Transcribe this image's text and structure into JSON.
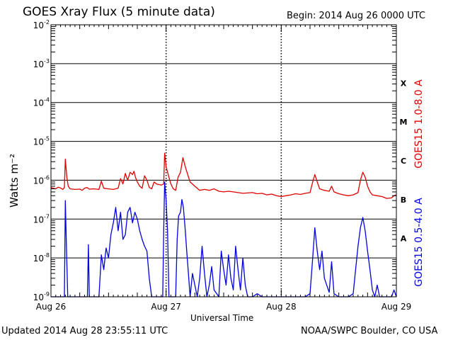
{
  "header": {
    "title": "GOES Xray Flux (5 minute data)",
    "begin": "Begin:  2014 Aug 26 0000 UTC"
  },
  "footer": {
    "updated": "Updated 2014 Aug 28 23:55:11 UTC",
    "credit": "NOAA/SWPC Boulder, CO USA"
  },
  "chart_data": {
    "type": "line",
    "title": "GOES Xray Flux (5 minute data)",
    "xlabel": "Universal Time",
    "ylabel": "Watts m⁻²",
    "yscale": "log",
    "ylim": [
      1e-09,
      0.01
    ],
    "xlim": [
      0,
      72
    ],
    "x_unit": "hours since 2014 Aug 26 0000 UTC",
    "x_ticks": [
      {
        "x": 0,
        "label": "Aug 26"
      },
      {
        "x": 24,
        "label": "Aug 27"
      },
      {
        "x": 48,
        "label": "Aug 28"
      },
      {
        "x": 72,
        "label": "Aug 29"
      }
    ],
    "y_ticks": [
      {
        "base": "10",
        "exp": "-9",
        "value": 1e-09
      },
      {
        "base": "10",
        "exp": "-8",
        "value": 1e-08
      },
      {
        "base": "10",
        "exp": "-7",
        "value": 1e-07
      },
      {
        "base": "10",
        "exp": "-6",
        "value": 1e-06
      },
      {
        "base": "10",
        "exp": "-5",
        "value": 1e-05
      },
      {
        "base": "10",
        "exp": "-4",
        "value": 0.0001
      },
      {
        "base": "10",
        "exp": "-3",
        "value": 0.001
      },
      {
        "base": "10",
        "exp": "-2",
        "value": 0.01
      }
    ],
    "flare_classes": [
      {
        "label": "X",
        "value": 0.000316
      },
      {
        "label": "M",
        "value": 3.16e-05
      },
      {
        "label": "C",
        "value": 3.16e-06
      },
      {
        "label": "B",
        "value": 3.16e-07
      },
      {
        "label": "A",
        "value": 3.16e-08
      }
    ],
    "grid": true,
    "series": [
      {
        "name": "GOES15 1.0-8.0 A",
        "color": "#e00000",
        "points": [
          [
            0,
            6.5e-07
          ],
          [
            0.5,
            6.2e-07
          ],
          [
            1,
            6e-07
          ],
          [
            1.5,
            6.6e-07
          ],
          [
            2,
            6.3e-07
          ],
          [
            2.5,
            5.8e-07
          ],
          [
            2.8,
            6.5e-07
          ],
          [
            3,
            3.5e-06
          ],
          [
            3.3,
            1.2e-06
          ],
          [
            3.6,
            7e-07
          ],
          [
            4,
            6e-07
          ],
          [
            5,
            5.8e-07
          ],
          [
            6,
            5.9e-07
          ],
          [
            6.5,
            5.5e-07
          ],
          [
            7,
            6.2e-07
          ],
          [
            7.5,
            6.5e-07
          ],
          [
            8,
            5.9e-07
          ],
          [
            9,
            6e-07
          ],
          [
            10,
            5.8e-07
          ],
          [
            10.5,
            9.5e-07
          ],
          [
            11,
            6.2e-07
          ],
          [
            12,
            6e-07
          ],
          [
            13,
            5.8e-07
          ],
          [
            14,
            6.2e-07
          ],
          [
            14.5,
            1.1e-06
          ],
          [
            15,
            8e-07
          ],
          [
            15.5,
            1.5e-06
          ],
          [
            16,
            1e-06
          ],
          [
            16.5,
            1.6e-06
          ],
          [
            17,
            1.4e-06
          ],
          [
            17.3,
            1.7e-06
          ],
          [
            17.6,
            1.2e-06
          ],
          [
            18,
            9e-07
          ],
          [
            18.5,
            7e-07
          ],
          [
            19,
            6.2e-07
          ],
          [
            19.5,
            1.3e-06
          ],
          [
            20,
            1e-06
          ],
          [
            20.5,
            6.5e-07
          ],
          [
            21,
            6e-07
          ],
          [
            21.5,
            9e-07
          ],
          [
            22,
            8e-07
          ],
          [
            23,
            7.5e-07
          ],
          [
            23.5,
            8e-07
          ],
          [
            23.7,
            5e-06
          ],
          [
            24,
            2.2e-06
          ],
          [
            24.5,
            1.3e-06
          ],
          [
            25,
            8e-07
          ],
          [
            25.5,
            6e-07
          ],
          [
            26,
            5.5e-07
          ],
          [
            26.5,
            1.2e-06
          ],
          [
            27,
            1.6e-06
          ],
          [
            27.5,
            3.8e-06
          ],
          [
            28,
            2.2e-06
          ],
          [
            28.5,
            1.4e-06
          ],
          [
            29,
            9e-07
          ],
          [
            30,
            7e-07
          ],
          [
            31,
            5.5e-07
          ],
          [
            32,
            5.8e-07
          ],
          [
            33,
            5.5e-07
          ],
          [
            34,
            6e-07
          ],
          [
            35,
            5.2e-07
          ],
          [
            36,
            5e-07
          ],
          [
            37,
            5.2e-07
          ],
          [
            38,
            5e-07
          ],
          [
            39,
            4.8e-07
          ],
          [
            40,
            4.6e-07
          ],
          [
            41,
            4.7e-07
          ],
          [
            42,
            4.8e-07
          ],
          [
            43,
            4.5e-07
          ],
          [
            44,
            4.6e-07
          ],
          [
            45,
            4.2e-07
          ],
          [
            46,
            4.4e-07
          ],
          [
            47,
            4e-07
          ],
          [
            48,
            3.8e-07
          ],
          [
            49,
            4e-07
          ],
          [
            50,
            4.2e-07
          ],
          [
            51,
            4.5e-07
          ],
          [
            52,
            4.3e-07
          ],
          [
            53,
            4.6e-07
          ],
          [
            54,
            4.8e-07
          ],
          [
            54.5,
            8.5e-07
          ],
          [
            55,
            1.4e-06
          ],
          [
            55.5,
            9e-07
          ],
          [
            56,
            6e-07
          ],
          [
            57,
            5.5e-07
          ],
          [
            58,
            5.2e-07
          ],
          [
            58.5,
            7e-07
          ],
          [
            59,
            5e-07
          ],
          [
            60,
            4.5e-07
          ],
          [
            61,
            4.2e-07
          ],
          [
            62,
            4e-07
          ],
          [
            63,
            4.2e-07
          ],
          [
            64,
            4.8e-07
          ],
          [
            64.5,
            1e-06
          ],
          [
            65,
            1.6e-06
          ],
          [
            65.5,
            1.2e-06
          ],
          [
            66,
            7e-07
          ],
          [
            66.5,
            5e-07
          ],
          [
            67,
            4.2e-07
          ],
          [
            68,
            4e-07
          ],
          [
            69,
            3.8e-07
          ],
          [
            70,
            3.4e-07
          ],
          [
            71,
            3.5e-07
          ],
          [
            71.5,
            4e-07
          ],
          [
            72,
            4.2e-07
          ]
        ]
      },
      {
        "name": "GOES15 0.5-4.0 A",
        "color": "#0000e0",
        "points": [
          [
            0,
            1e-09
          ],
          [
            1,
            1e-09
          ],
          [
            2,
            1e-09
          ],
          [
            2.8,
            1e-09
          ],
          [
            3,
            3e-07
          ],
          [
            3.2,
            2.5e-08
          ],
          [
            3.5,
            1e-09
          ],
          [
            5,
            1e-09
          ],
          [
            6,
            1e-09
          ],
          [
            7,
            1e-09
          ],
          [
            7.6,
            1e-09
          ],
          [
            7.8,
            2.2e-08
          ],
          [
            8,
            1e-09
          ],
          [
            9,
            1e-09
          ],
          [
            10,
            1e-09
          ],
          [
            10.5,
            1.2e-08
          ],
          [
            11,
            5e-09
          ],
          [
            11.5,
            1.8e-08
          ],
          [
            12,
            1e-08
          ],
          [
            12.5,
            4e-08
          ],
          [
            13,
            8e-08
          ],
          [
            13.5,
            2e-07
          ],
          [
            14,
            5e-08
          ],
          [
            14.5,
            1.5e-07
          ],
          [
            15,
            3e-08
          ],
          [
            15.5,
            4e-08
          ],
          [
            16,
            1.5e-07
          ],
          [
            16.5,
            2e-07
          ],
          [
            17,
            8e-08
          ],
          [
            17.5,
            1.5e-07
          ],
          [
            18,
            1e-07
          ],
          [
            18.5,
            5e-08
          ],
          [
            19,
            3e-08
          ],
          [
            19.5,
            2e-08
          ],
          [
            20,
            1.5e-08
          ],
          [
            20.5,
            3e-09
          ],
          [
            21,
            1e-09
          ],
          [
            22,
            1e-09
          ],
          [
            23,
            1e-09
          ],
          [
            23.3,
            1e-09
          ],
          [
            23.5,
            5e-08
          ],
          [
            23.7,
            9e-07
          ],
          [
            24,
            3e-07
          ],
          [
            24.3,
            5e-08
          ],
          [
            24.6,
            1e-09
          ],
          [
            25,
            1e-09
          ],
          [
            25.5,
            1e-09
          ],
          [
            26,
            1e-09
          ],
          [
            26.3,
            3e-08
          ],
          [
            26.6,
            1.2e-07
          ],
          [
            27,
            1.5e-07
          ],
          [
            27.3,
            3.2e-07
          ],
          [
            27.6,
            2e-07
          ],
          [
            28,
            5e-08
          ],
          [
            28.3,
            1.5e-08
          ],
          [
            28.6,
            5e-09
          ],
          [
            29,
            1e-09
          ],
          [
            29.5,
            4e-09
          ],
          [
            30,
            2e-09
          ],
          [
            30.5,
            1e-09
          ],
          [
            31,
            3e-09
          ],
          [
            31.5,
            2e-08
          ],
          [
            32,
            4e-09
          ],
          [
            32.5,
            1e-09
          ],
          [
            33,
            2e-09
          ],
          [
            33.5,
            6e-09
          ],
          [
            34,
            1.5e-09
          ],
          [
            35,
            1e-09
          ],
          [
            35.5,
            1.5e-08
          ],
          [
            36,
            5e-09
          ],
          [
            36.5,
            2e-09
          ],
          [
            37,
            1.2e-08
          ],
          [
            37.5,
            3e-09
          ],
          [
            38,
            1.5e-09
          ],
          [
            38.5,
            2e-08
          ],
          [
            39,
            5e-09
          ],
          [
            39.5,
            1.5e-09
          ],
          [
            40,
            1e-08
          ],
          [
            40.5,
            2e-09
          ],
          [
            41,
            1e-09
          ],
          [
            42,
            1e-09
          ],
          [
            43,
            1.2e-09
          ],
          [
            44,
            1e-09
          ],
          [
            45,
            1e-09
          ],
          [
            46,
            1e-09
          ],
          [
            47,
            1e-09
          ],
          [
            48,
            1e-09
          ],
          [
            49,
            1e-09
          ],
          [
            50,
            1e-09
          ],
          [
            50.5,
            1e-09
          ],
          [
            51,
            1e-09
          ],
          [
            52,
            1e-09
          ],
          [
            53,
            1e-09
          ],
          [
            54,
            1.2e-09
          ],
          [
            54.5,
            8e-09
          ],
          [
            55,
            6e-08
          ],
          [
            55.5,
            1.5e-08
          ],
          [
            56,
            5e-09
          ],
          [
            56.5,
            1.5e-08
          ],
          [
            57,
            3e-09
          ],
          [
            58,
            1.3e-09
          ],
          [
            58.5,
            8e-09
          ],
          [
            59,
            1.2e-09
          ],
          [
            60,
            1e-09
          ],
          [
            61,
            1e-09
          ],
          [
            62,
            1e-09
          ],
          [
            63,
            1.2e-09
          ],
          [
            63.5,
            5e-09
          ],
          [
            64,
            2e-08
          ],
          [
            64.5,
            6e-08
          ],
          [
            65,
            1.1e-07
          ],
          [
            65.5,
            5e-08
          ],
          [
            66,
            1.5e-08
          ],
          [
            66.5,
            5e-09
          ],
          [
            67,
            1.5e-09
          ],
          [
            67.5,
            1e-09
          ],
          [
            68,
            2e-09
          ],
          [
            68.5,
            1e-09
          ],
          [
            69,
            1e-09
          ],
          [
            70,
            1e-09
          ],
          [
            71,
            1e-09
          ],
          [
            71.5,
            1.5e-09
          ],
          [
            72,
            1e-09
          ]
        ]
      }
    ]
  }
}
